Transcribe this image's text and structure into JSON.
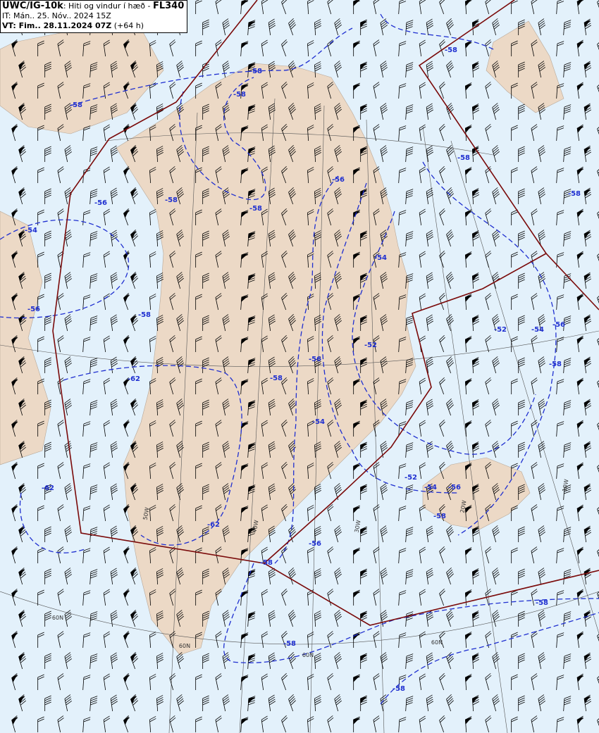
{
  "header": {
    "product": "UWC/IG-10k",
    "subtitle": ": Hiti og vindur í hæð - ",
    "level": "FL340",
    "issue_time": "IT: Mán.. 25. Nóv.. 2024 15Z",
    "valid_label": "VT: Fim.. 28.11.2024 07Z",
    "valid_offset": " (+64 h)"
  },
  "colors": {
    "sea": "#e3f1fb",
    "land": "#ecd9c6",
    "isotherm": "#1f2fd0",
    "fir_boundary": "#7a0a0a",
    "grid": "#555555",
    "barb": "#000000"
  },
  "isotherm_labels": [
    "-58",
    "-58",
    "-58",
    "-58",
    "-58",
    "-56",
    "-58",
    "-56",
    "-58",
    "-58",
    "-54",
    "-54",
    "-56",
    "-58",
    "-52",
    "-54",
    "-56",
    "-52",
    "-58",
    "-56",
    "-58",
    "-62",
    "-54",
    "-52",
    "-54",
    "-56",
    "-58",
    "-62",
    "-62",
    "-56",
    "-58",
    "-58",
    "-58",
    "-58"
  ],
  "grid_labels": [
    "60N",
    "60N",
    "60N",
    "60N",
    "50W",
    "40W",
    "30W",
    "20W",
    "10W"
  ]
}
